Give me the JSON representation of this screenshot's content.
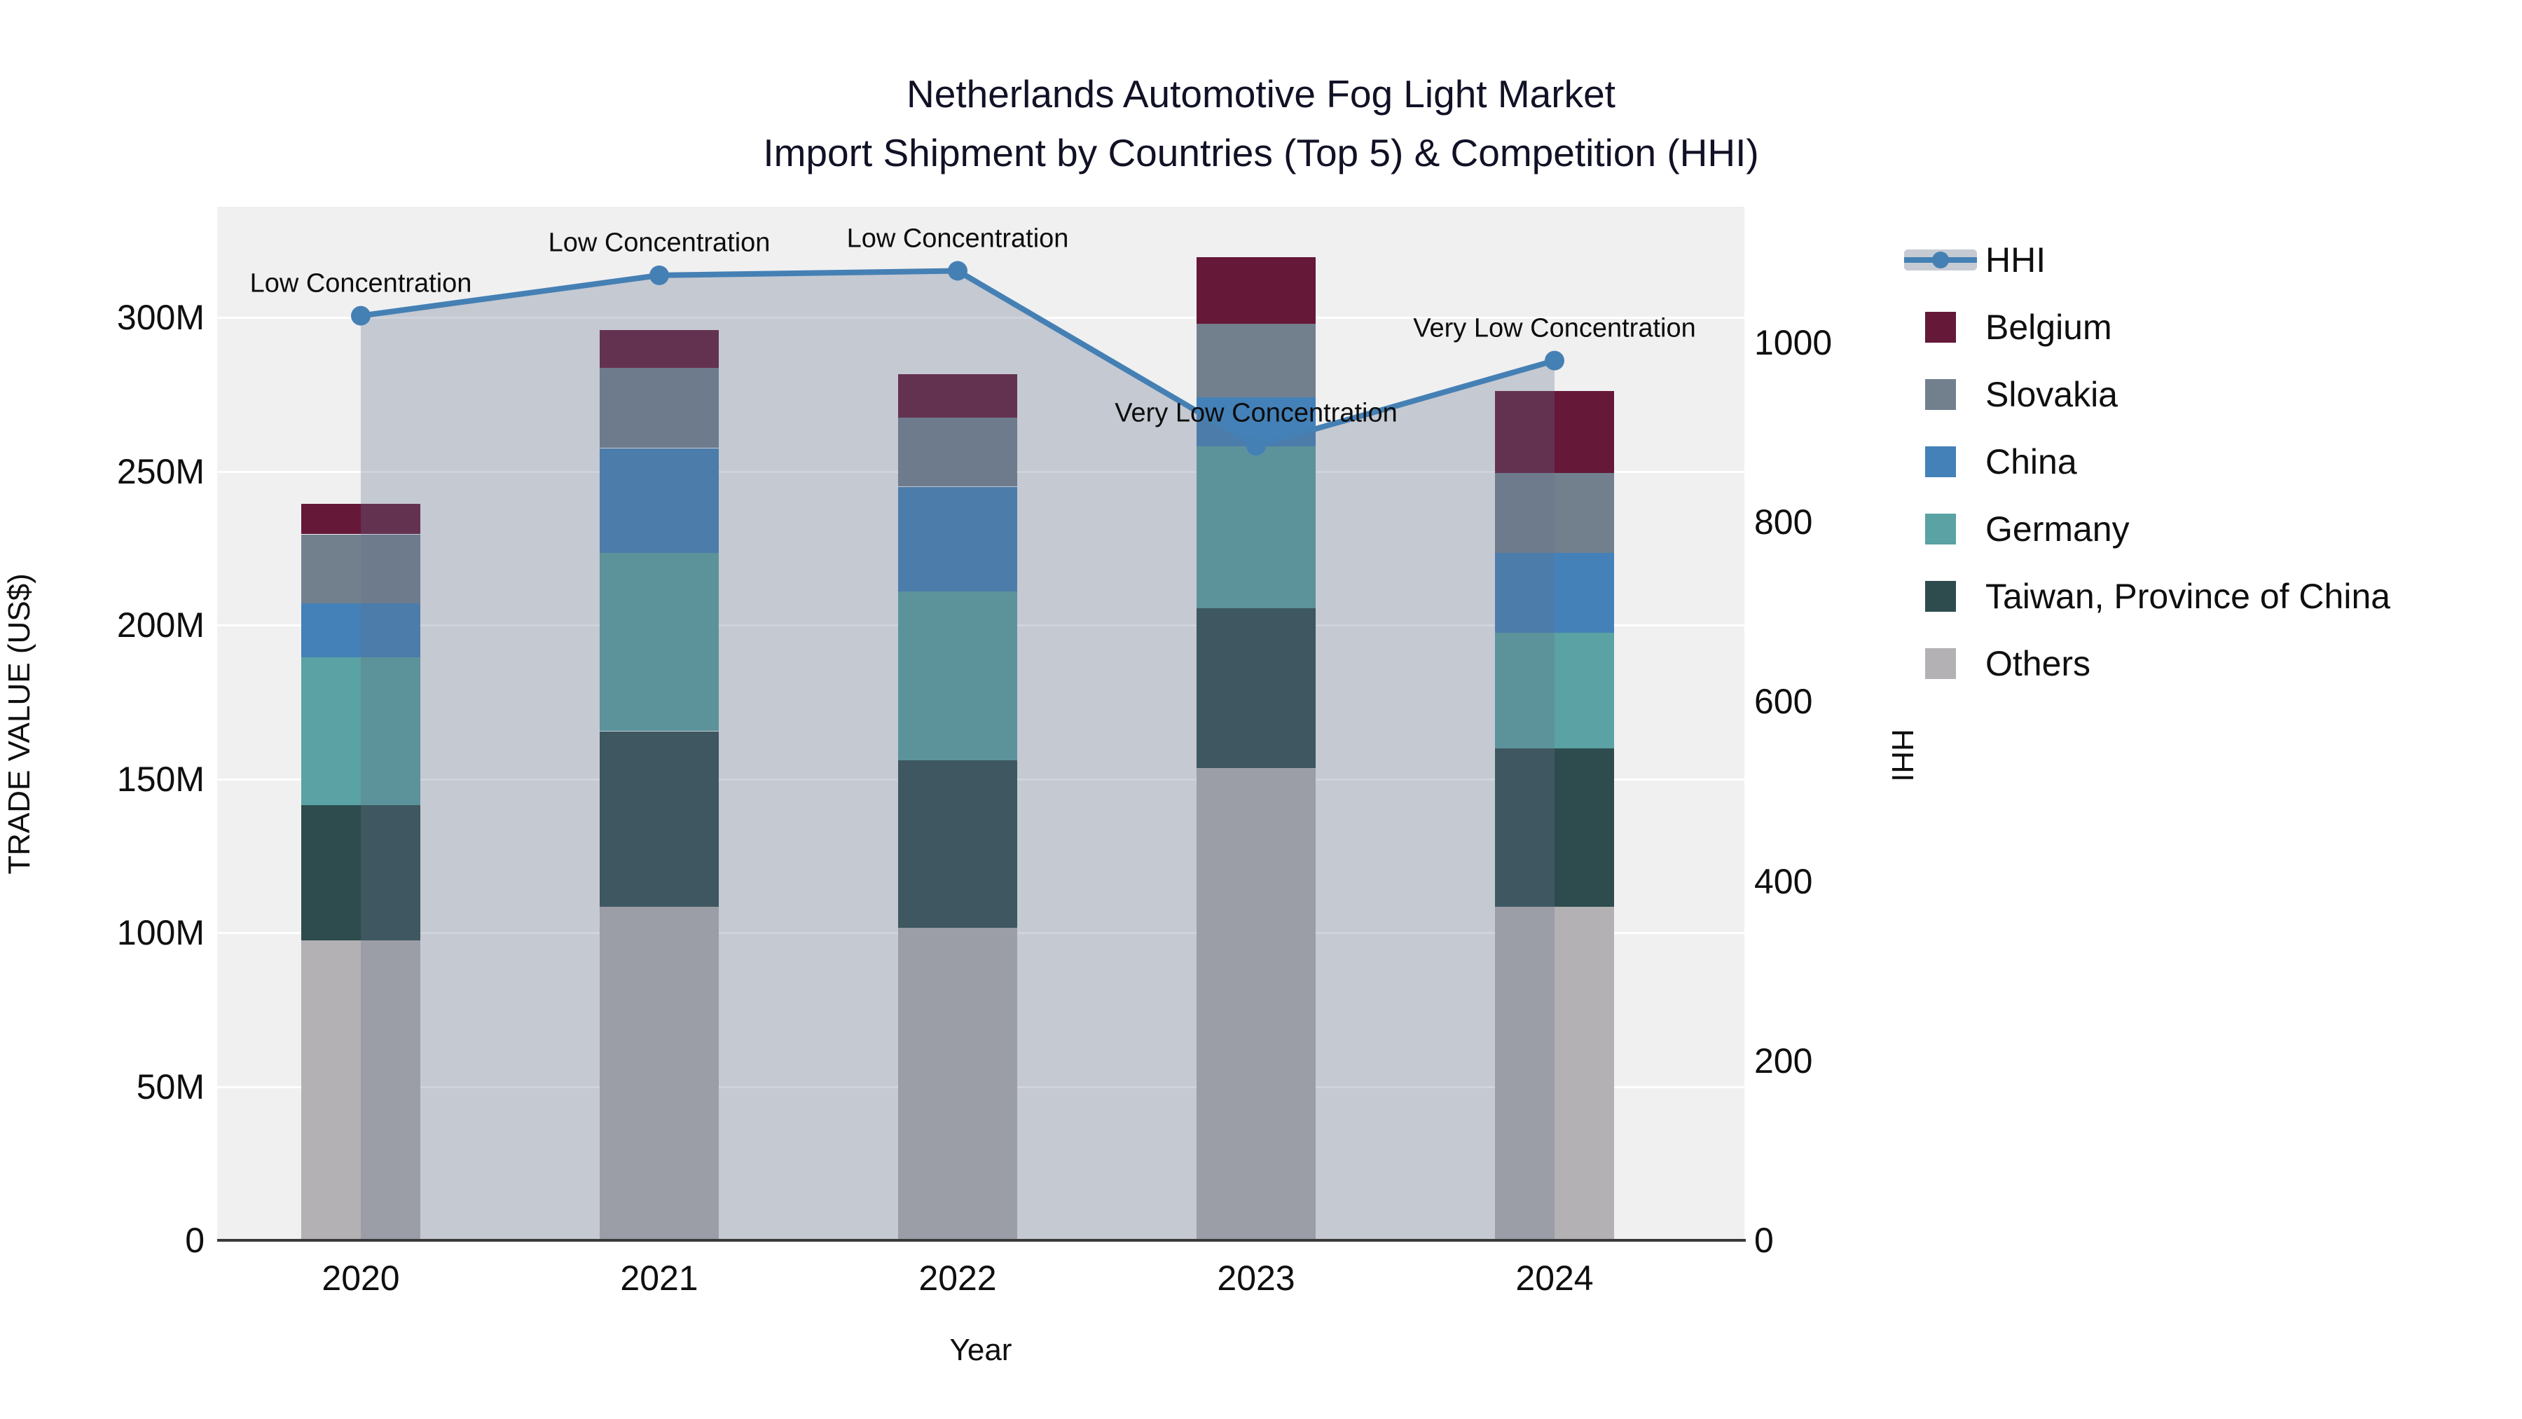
{
  "title": {
    "line1": "Netherlands Automotive Fog Light Market",
    "line2": "Import Shipment by Countries (Top 5) & Competition (HHI)"
  },
  "axes": {
    "left_title": "TRADE VALUE (US$)",
    "right_title": "HHI",
    "x_title": "Year"
  },
  "colors": {
    "hhi_line": "#4580b4",
    "hhi_fill": "rgba(100,114,138,0.30)",
    "plot_bg": "#f0f0f1",
    "axis_line": "#3a3a3a",
    "legend_band": "#c6cbd3"
  },
  "legend": [
    {
      "label": "HHI",
      "color": "#4580b4",
      "type": "line"
    },
    {
      "label": "Belgium",
      "color": "#651838",
      "type": "square"
    },
    {
      "label": "Slovakia",
      "color": "#72808e",
      "type": "square"
    },
    {
      "label": "China",
      "color": "#4381b8",
      "type": "square"
    },
    {
      "label": "Germany",
      "color": "#5aa2a3",
      "type": "square"
    },
    {
      "label": "Taiwan, Province of China",
      "color": "#2e4c4e",
      "type": "square"
    },
    {
      "label": "Others",
      "color": "#b3b1b3",
      "type": "square"
    }
  ],
  "chart_data": {
    "type": [
      "stacked-bar",
      "line"
    ],
    "title": "Netherlands Automotive Fog Light Market — Import Shipment by Countries (Top 5) & Competition (HHI)",
    "categories": [
      "2020",
      "2021",
      "2022",
      "2023",
      "2024"
    ],
    "bar_value_unit": "million US$",
    "series": [
      {
        "name": "Others",
        "color": "#b3b1b3",
        "values": [
          97.5,
          108.5,
          101.5,
          153.5,
          108.5
        ]
      },
      {
        "name": "Taiwan, Province of China",
        "color": "#2e4c4e",
        "values": [
          44.0,
          57.0,
          54.5,
          52.0,
          51.5
        ]
      },
      {
        "name": "Germany",
        "color": "#5aa2a3",
        "values": [
          48.0,
          58.0,
          55.0,
          52.5,
          37.5
        ]
      },
      {
        "name": "China",
        "color": "#4381b8",
        "values": [
          17.5,
          34.0,
          34.0,
          16.0,
          26.0
        ]
      },
      {
        "name": "Slovakia",
        "color": "#72808e",
        "values": [
          22.5,
          26.0,
          22.5,
          24.0,
          26.0
        ]
      },
      {
        "name": "Belgium",
        "color": "#651838",
        "values": [
          10.0,
          12.5,
          14.0,
          21.5,
          26.5
        ]
      }
    ],
    "bar_totals": [
      239.5,
      296.0,
      281.5,
      319.5,
      276.0
    ],
    "line_series": {
      "name": "HHI",
      "axis": "right",
      "values": [
        1030,
        1075,
        1080,
        885,
        980
      ],
      "fill_to_zero": true
    },
    "annotations": [
      "Low Concentration",
      "Low Concentration",
      "Low Concentration",
      "Very Low Concentration",
      "Very Low Concentration"
    ],
    "left_axis": {
      "title": "TRADE VALUE (US$)",
      "tick_labels": [
        "0",
        "50M",
        "100M",
        "150M",
        "200M",
        "250M",
        "300M"
      ],
      "tick_values": [
        0,
        50,
        100,
        150,
        200,
        250,
        300
      ],
      "range": [
        0,
        336
      ]
    },
    "right_axis": {
      "title": "HHI",
      "tick_labels": [
        "0",
        "200",
        "400",
        "600",
        "800",
        "1000"
      ],
      "tick_values": [
        0,
        200,
        400,
        600,
        800,
        1000
      ],
      "range": [
        0,
        1151
      ]
    },
    "x_axis": {
      "title": "Year"
    },
    "grid": true,
    "legend_position": "right",
    "stack_order_bottom_to_top": [
      "Others",
      "Taiwan, Province of China",
      "Germany",
      "China",
      "Slovakia",
      "Belgium"
    ]
  }
}
